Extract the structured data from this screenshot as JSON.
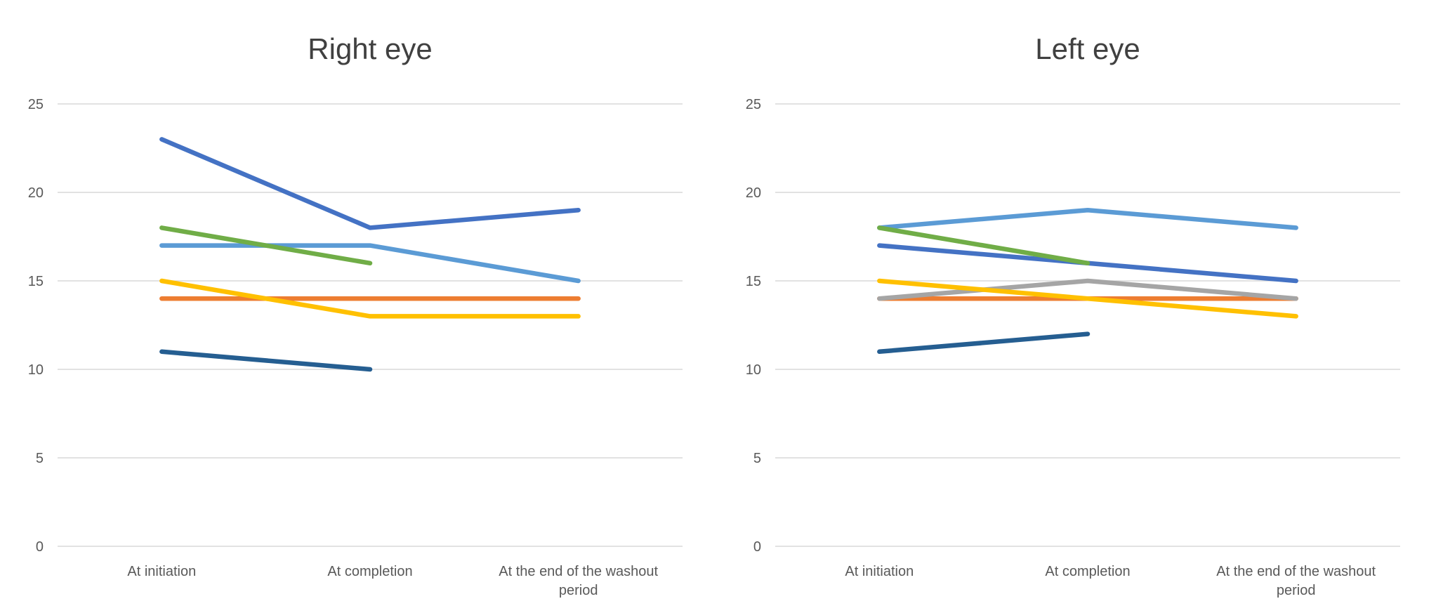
{
  "figure": {
    "background": "#FFFFFF",
    "gridline_color": "#D9D9D9",
    "axis_text_color": "#595959",
    "title_color": "#404040"
  },
  "chart_data": [
    {
      "type": "line",
      "title": "Right eye",
      "categories": [
        "At initiation",
        "At completion",
        "At the end of the washout period"
      ],
      "xlabel": "",
      "ylabel": "",
      "ylim": [
        0,
        25
      ],
      "yticks": [
        0,
        5,
        10,
        15,
        20,
        25
      ],
      "grid": true,
      "legend": "none",
      "series": [
        {
          "color_name": "light-blue",
          "color": "#5B9BD5",
          "values": [
            17,
            17,
            15
          ]
        },
        {
          "color_name": "orange",
          "color": "#ED7D31",
          "values": [
            14,
            14,
            14
          ]
        },
        {
          "color_name": "yellow",
          "color": "#FFC000",
          "values": [
            15,
            13,
            13
          ]
        },
        {
          "color_name": "medium-blue",
          "color": "#4472C4",
          "values": [
            23,
            18,
            19
          ]
        },
        {
          "color_name": "green",
          "color": "#70AD47",
          "values": [
            18,
            16,
            null
          ]
        },
        {
          "color_name": "dark-navy",
          "color": "#255E91",
          "values": [
            11,
            10,
            null
          ]
        }
      ]
    },
    {
      "type": "line",
      "title": "Left eye",
      "categories": [
        "At initiation",
        "At completion",
        "At the end of the washout period"
      ],
      "xlabel": "",
      "ylabel": "",
      "ylim": [
        0,
        25
      ],
      "yticks": [
        0,
        5,
        10,
        15,
        20,
        25
      ],
      "grid": true,
      "legend": "none",
      "series": [
        {
          "color_name": "light-blue",
          "color": "#5B9BD5",
          "values": [
            18,
            19,
            18
          ]
        },
        {
          "color_name": "orange",
          "color": "#ED7D31",
          "values": [
            14,
            14,
            14
          ]
        },
        {
          "color_name": "gray",
          "color": "#A5A5A5",
          "values": [
            14,
            15,
            14
          ]
        },
        {
          "color_name": "yellow",
          "color": "#FFC000",
          "values": [
            15,
            14,
            13
          ]
        },
        {
          "color_name": "medium-blue",
          "color": "#4472C4",
          "values": [
            17,
            16,
            15
          ]
        },
        {
          "color_name": "green",
          "color": "#70AD47",
          "values": [
            18,
            16,
            null
          ]
        },
        {
          "color_name": "dark-navy",
          "color": "#255E91",
          "values": [
            11,
            12,
            null
          ]
        }
      ]
    }
  ]
}
